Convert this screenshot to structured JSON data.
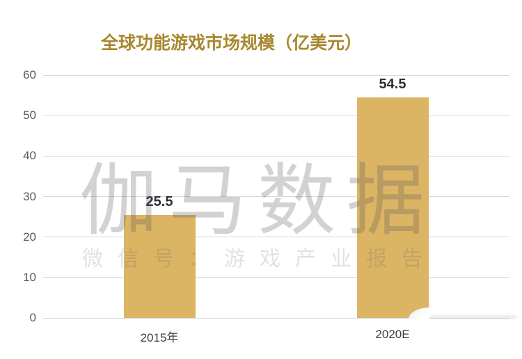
{
  "title": "全球功能游戏市场规模（亿美元）",
  "watermark": {
    "line1": "伽马数据",
    "line2": "微信号：游戏产业报告"
  },
  "chart_data": {
    "type": "bar",
    "title": "全球功能游戏市场规模（亿美元）",
    "categories": [
      "2015年",
      "2020E"
    ],
    "values": [
      25.5,
      54.5
    ],
    "value_labels": [
      "25.5",
      "54.5"
    ],
    "xlabel": "",
    "ylabel": "",
    "ylim": [
      0,
      60
    ],
    "yticks": [
      0,
      10,
      20,
      30,
      40,
      50,
      60
    ],
    "grid": "horizontal",
    "legend": "none",
    "colors": {
      "bar": "#dbb464",
      "title": "#a8872e",
      "gridline": "#d9d9d9",
      "y_tick_label": "#595959",
      "x_tick_label": "#3d3d3d",
      "value_label": "#2d2d35",
      "background": "#ffffff"
    }
  }
}
